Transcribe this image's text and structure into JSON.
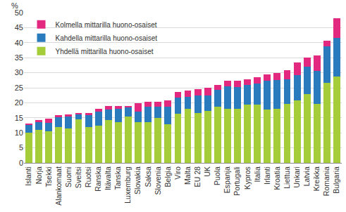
{
  "chart_data": {
    "type": "bar",
    "stacked": true,
    "grid": true,
    "legend": "top-left",
    "y_label": "%",
    "categories": [
      "Islanti",
      "Norja",
      "Tsekki",
      "Alankomaat",
      "Suomi",
      "Sveitsi",
      "Ruotsi",
      "Ranska",
      "Itävalta",
      "Tanska",
      "Luxemburg",
      "Slovakia",
      "Saksa",
      "Slovenia",
      "Belgia",
      "Viro",
      "Malta",
      "EU 28",
      "UK",
      "Puola",
      "Espanja",
      "Portugali",
      "Kypros",
      "Italia",
      "Irlanti",
      "Kroatia",
      "Liettua",
      "Unkari",
      "Latvia",
      "Kreikka",
      "Romania",
      "Bulgaria"
    ],
    "series": [
      {
        "name": "Yhdellä mittarilla huono-osaiset",
        "color": "#a5cd39",
        "values": [
          10,
          11,
          10.5,
          12,
          11.5,
          14.5,
          12,
          12.5,
          14.3,
          13.5,
          15.5,
          13.5,
          13.5,
          15,
          12.8,
          16.3,
          18,
          16.5,
          17.3,
          18.8,
          17.9,
          18,
          19.5,
          19.3,
          17.8,
          18,
          19.6,
          20.9,
          22.8,
          19.7,
          26.7,
          28.8
        ]
      },
      {
        "name": "Kahdella mittarilla huono-osaiset",
        "color": "#2a7bbd",
        "values": [
          2.7,
          2.5,
          2.8,
          3.3,
          4,
          1.7,
          3.8,
          4.5,
          3.5,
          4.5,
          3.1,
          3.5,
          5.3,
          3.7,
          6,
          5.5,
          3.9,
          6,
          5.2,
          5.6,
          7.6,
          7.3,
          6.5,
          7.2,
          9.5,
          9.5,
          8.2,
          8.2,
          9.3,
          10.8,
          12,
          12.9
        ]
      },
      {
        "name": "Kolmella mittarilla huono-osaiset",
        "color": "#e2297f",
        "values": [
          0.3,
          0.7,
          1.4,
          0.6,
          0.6,
          0.3,
          0.8,
          1.1,
          1.1,
          0.9,
          0.4,
          2.9,
          1.6,
          1.7,
          2.1,
          1.8,
          2.1,
          2,
          2.4,
          1.5,
          1.9,
          2.1,
          1.9,
          2,
          2.2,
          2.4,
          3.1,
          4.4,
          3,
          5.3,
          1.9,
          6.4
        ]
      }
    ],
    "ylim": [
      0,
      50
    ],
    "yticks": [
      0,
      5,
      10,
      15,
      20,
      25,
      30,
      35,
      40,
      45,
      50
    ]
  }
}
